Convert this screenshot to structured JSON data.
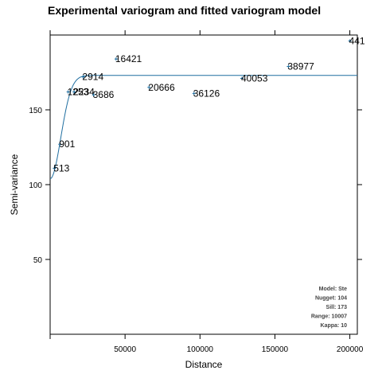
{
  "chart_data": {
    "type": "scatter",
    "title": "Experimental variogram and fitted variogram model",
    "xlabel": "Distance",
    "ylabel": "Semi-variance",
    "xlim": [
      0,
      205000
    ],
    "ylim": [
      0,
      200
    ],
    "x_ticks": [
      50000,
      100000,
      150000,
      200000
    ],
    "y_ticks": [
      50,
      100,
      150
    ],
    "grid": false,
    "points": [
      {
        "x": 2800,
        "y": 111,
        "label": "513"
      },
      {
        "x": 6500,
        "y": 127,
        "label": "901"
      },
      {
        "x": 12000,
        "y": 162,
        "label": "1253"
      },
      {
        "x": 16000,
        "y": 162,
        "label": "2234"
      },
      {
        "x": 22000,
        "y": 172,
        "label": "2914"
      },
      {
        "x": 29000,
        "y": 160,
        "label": "3686"
      },
      {
        "x": 44000,
        "y": 184,
        "label": "16421"
      },
      {
        "x": 66000,
        "y": 165,
        "label": "20666"
      },
      {
        "x": 96000,
        "y": 161,
        "label": "36126"
      },
      {
        "x": 128000,
        "y": 171,
        "label": "40053"
      },
      {
        "x": 159000,
        "y": 179,
        "label": "38977"
      },
      {
        "x": 200000,
        "y": 196,
        "label": "441"
      }
    ],
    "model": {
      "name": "Ste",
      "nugget": 104,
      "sill": 173,
      "range": 10007,
      "kappa": 10
    },
    "model_line_color": "#1f6ea0",
    "point_color": "#1f6ea0",
    "info_lines": [
      "Model: Ste",
      "Nugget: 104",
      "Sill: 173",
      "Range: 10007",
      "Kappa: 10"
    ]
  }
}
